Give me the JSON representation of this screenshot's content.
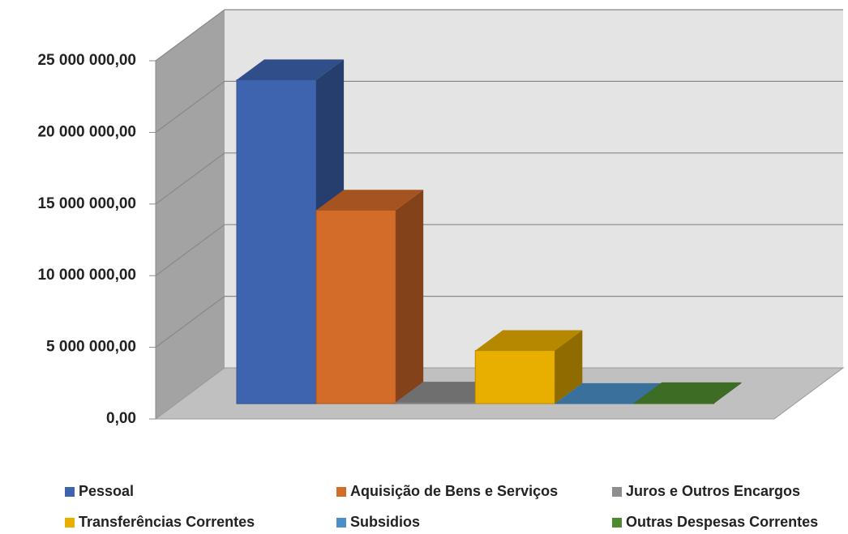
{
  "chart_data": {
    "type": "bar3d",
    "categories": [
      null
    ],
    "series": [
      {
        "name": "Pessoal",
        "color": "#3e64b0",
        "values": [
          22600000
        ]
      },
      {
        "name": "Aquisição de Bens e Serviços",
        "color": "#d36b29",
        "values": [
          13500000
        ]
      },
      {
        "name": "Juros e Outros Encargos",
        "color": "#8e8e8e",
        "values": [
          100000
        ]
      },
      {
        "name": "Transferências Correntes",
        "color": "#e8ae00",
        "values": [
          3700000
        ]
      },
      {
        "name": "Subsidios",
        "color": "#4a8fc8",
        "values": [
          0
        ]
      },
      {
        "name": "Outras Despesas Correntes",
        "color": "#4e8a30",
        "values": [
          60000
        ]
      }
    ],
    "ylim": [
      0,
      25000000
    ],
    "yticks": [
      {
        "value": 0,
        "label": "0,00"
      },
      {
        "value": 5000000,
        "label": "5 000 000,00"
      },
      {
        "value": 10000000,
        "label": "10 000 000,00"
      },
      {
        "value": 15000000,
        "label": "15 000 000,00"
      },
      {
        "value": 20000000,
        "label": "20 000 000,00"
      },
      {
        "value": 25000000,
        "label": "25 000 000,00"
      }
    ],
    "grid": true,
    "legend": "bottom"
  }
}
